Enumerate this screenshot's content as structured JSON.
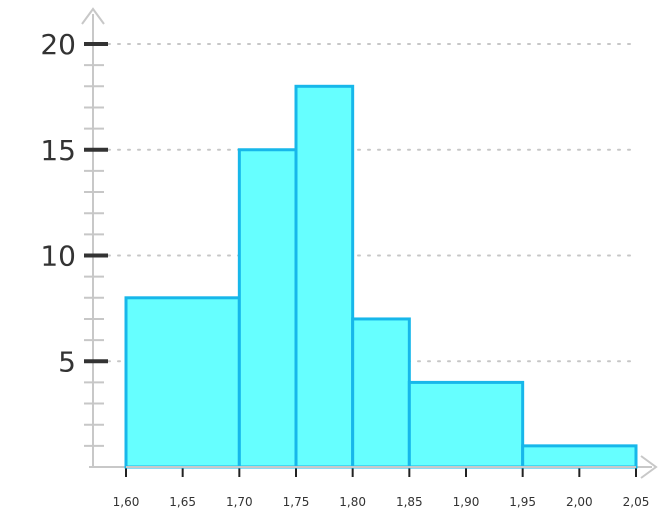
{
  "chart_data": {
    "type": "bar",
    "title": "",
    "xlabel": "",
    "ylabel": "",
    "bins": [
      {
        "start": 1.6,
        "end": 1.7,
        "value": 8
      },
      {
        "start": 1.7,
        "end": 1.75,
        "value": 15
      },
      {
        "start": 1.75,
        "end": 1.8,
        "value": 18
      },
      {
        "start": 1.8,
        "end": 1.85,
        "value": 7
      },
      {
        "start": 1.85,
        "end": 1.95,
        "value": 4
      },
      {
        "start": 1.95,
        "end": 2.05,
        "value": 1
      }
    ],
    "xlim": [
      1.6,
      2.05
    ],
    "ylim": [
      0,
      20
    ],
    "y_ticks": [
      {
        "value": 5,
        "label": "5"
      },
      {
        "value": 10,
        "label": "10"
      },
      {
        "value": 15,
        "label": "15"
      },
      {
        "value": 20,
        "label": "20"
      }
    ],
    "x_ticks": [
      {
        "value": 1.6,
        "label": "1,60"
      },
      {
        "value": 1.65,
        "label": "1,65"
      },
      {
        "value": 1.7,
        "label": "1,70"
      },
      {
        "value": 1.75,
        "label": "1,75"
      },
      {
        "value": 1.8,
        "label": "1,80"
      },
      {
        "value": 1.85,
        "label": "1,85"
      },
      {
        "value": 1.9,
        "label": "1,90"
      },
      {
        "value": 1.95,
        "label": "1,95"
      },
      {
        "value": 2.0,
        "label": "2,00"
      },
      {
        "value": 2.05,
        "label": "2,05"
      }
    ],
    "grid": true,
    "colors": {
      "bar_fill": "#66ffff",
      "bar_stroke": "#17b7ea",
      "axis": "#c8c8c8",
      "grid": "#c7c7c7",
      "text": "#333333"
    }
  }
}
